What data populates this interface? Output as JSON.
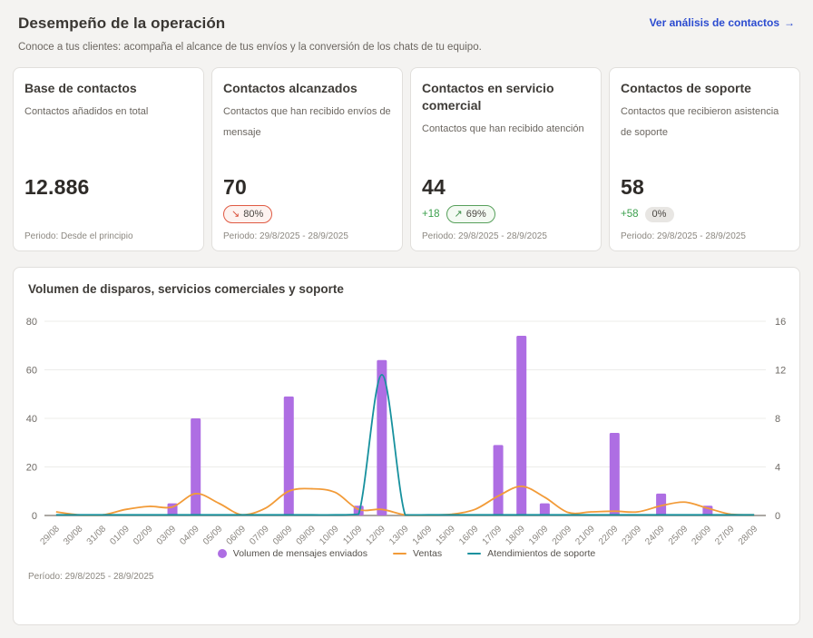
{
  "page": {
    "title": "Desempeño de la operación",
    "subtitle": "Conoce a tus clientes: acompaña el alcance de tus envíos y la conversión de los chats de tu equipo.",
    "link_label": "Ver análisis de contactos"
  },
  "icons": {
    "arrow_right": "→",
    "trend_down": "↘",
    "trend_up": "↗"
  },
  "colors": {
    "link_blue": "#2b4bd0",
    "positive_green": "#3da04e",
    "negative_red": "#e05a43",
    "bars_purple": "#ae6ee3",
    "ventas_orange": "#f29b38",
    "soporte_teal": "#17919e"
  },
  "cards": [
    {
      "title": "Base de contactos",
      "description": "Contactos añadidos en total",
      "value": "12.886",
      "period": "Periodo: Desde el principio"
    },
    {
      "title": "Contactos alcanzados",
      "description": "Contactos que han recibido envíos de mensaje",
      "value": "70",
      "badge_arrow": "↘",
      "badge_label": "80%",
      "period": "Periodo: 29/8/2025 - 28/9/2025"
    },
    {
      "title": "Contactos en servicio comercial",
      "description": "Contactos que han recibido atención",
      "value": "44",
      "delta": "+18",
      "badge_arrow": "↗",
      "badge_label": "69%",
      "period": "Periodo: 29/8/2025 - 28/9/2025"
    },
    {
      "title": "Contactos de soporte",
      "description": "Contactos que recibieron asistencia de soporte",
      "value": "58",
      "delta": "+58",
      "badge_label": "0%",
      "period": "Periodo: 29/8/2025 - 28/9/2025"
    }
  ],
  "chart_card": {
    "title": "Volumen de disparos, servicios comerciales y soporte",
    "period": "Período: 29/8/2025 - 28/9/2025"
  },
  "chart_data": {
    "type": "bar",
    "title": "Volumen de disparos, servicios comerciales y soporte",
    "categories": [
      "29/08",
      "30/08",
      "31/08",
      "01/09",
      "02/09",
      "03/09",
      "04/09",
      "05/09",
      "06/09",
      "07/09",
      "08/09",
      "09/09",
      "10/09",
      "11/09",
      "12/09",
      "13/09",
      "14/09",
      "15/09",
      "16/09",
      "17/09",
      "18/09",
      "19/09",
      "20/09",
      "21/09",
      "22/09",
      "23/09",
      "24/09",
      "25/09",
      "26/09",
      "27/09",
      "28/09"
    ],
    "series": [
      {
        "name": "Volumen de mensajes enviados",
        "type": "bar",
        "axis": "left",
        "color": "#ae6ee3",
        "values": [
          0,
          0,
          0,
          0,
          0,
          5,
          40,
          0,
          0,
          0,
          49,
          0,
          0,
          4,
          64,
          0,
          0,
          0,
          0,
          29,
          74,
          5,
          0,
          0,
          34,
          0,
          9,
          0,
          4,
          0,
          0
        ]
      },
      {
        "name": "Ventas",
        "type": "line",
        "axis": "right",
        "color": "#f29b38",
        "values": [
          0.3,
          0.05,
          0.05,
          0.5,
          0.75,
          0.7,
          1.8,
          1.0,
          0.05,
          0.6,
          2.0,
          2.2,
          1.9,
          0.5,
          0.5,
          0.05,
          0,
          0.1,
          0.5,
          1.6,
          2.4,
          1.5,
          0.25,
          0.3,
          0.35,
          0.3,
          0.8,
          1.1,
          0.6,
          0.1,
          0.05
        ]
      },
      {
        "name": "Atendimientos de soporte",
        "type": "line",
        "axis": "right",
        "color": "#17919e",
        "values": [
          0.05,
          0.05,
          0.05,
          0.05,
          0.05,
          0.05,
          0.05,
          0.05,
          0.05,
          0.05,
          0.05,
          0.05,
          0.05,
          0.1,
          11.6,
          0.05,
          0.05,
          0.05,
          0.05,
          0.05,
          0.05,
          0.05,
          0.05,
          0.05,
          0.05,
          0.05,
          0.05,
          0.05,
          0.05,
          0.05,
          0.05
        ]
      }
    ],
    "left_axis": {
      "min": 0,
      "max": 80,
      "ticks": [
        0,
        20,
        40,
        60,
        80
      ]
    },
    "right_axis": {
      "min": 0,
      "max": 16,
      "ticks": [
        0,
        4,
        8,
        12,
        16
      ]
    },
    "grid": true,
    "legend_position": "bottom"
  }
}
